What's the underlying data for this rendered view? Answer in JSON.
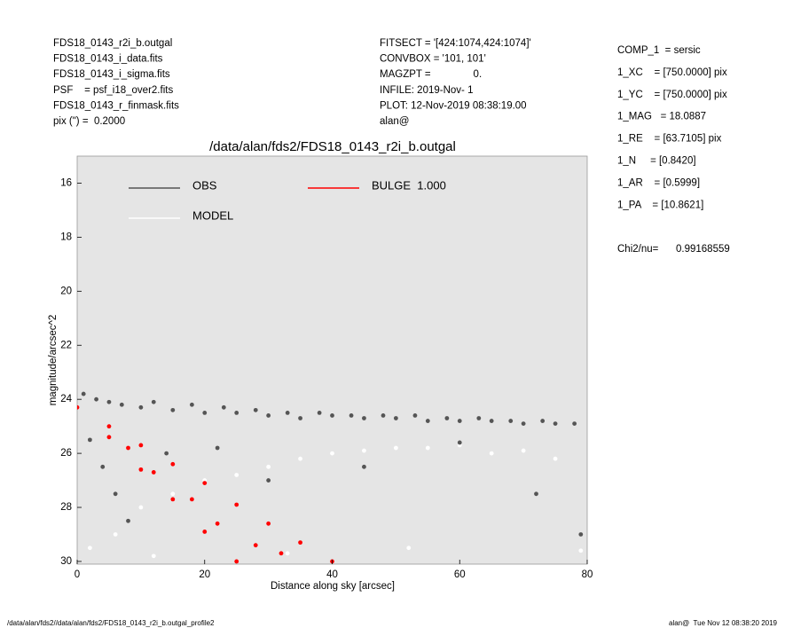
{
  "header": {
    "left": [
      "FDS18_0143_r2i_b.outgal",
      "FDS18_0143_i_data.fits",
      "FDS18_0143_i_sigma.fits",
      "PSF    = psf_i18_over2.fits",
      "FDS18_0143_r_finmask.fits",
      "pix (\") =  0.2000"
    ],
    "middle": [
      "FITSECT = '[424:1074,424:1074]'",
      "CONVBOX = '101, 101'",
      "MAGZPT =               0.",
      "INFILE: 2019-Nov- 1",
      "PLOT: 12-Nov-2019 08:38:19.00",
      "alan@"
    ],
    "right": [
      "COMP_1  = sersic",
      "1_XC    = [750.0000] pix",
      "1_YC    = [750.0000] pix",
      "1_MAG   = 18.0887",
      "1_RE    = [63.7105] pix",
      "1_N     = [0.8420]",
      "1_AR    = [0.5999]",
      "1_PA    = [10.8621]"
    ],
    "chi2_label": "Chi2/nu=",
    "chi2_value": "0.99168559"
  },
  "footer": {
    "left": "/data/alan/fds2//data/alan/fds2/FDS18_0143_r2i_b.outgal_profile2",
    "right": "alan@  Tue Nov 12 08:38:20 2019"
  },
  "chart_data": {
    "type": "scatter",
    "title": "/data/alan/fds2/FDS18_0143_r2i_b.outgal",
    "x_label": "Distance along sky [arcsec]",
    "y_label": "magnitude/arcsec^2",
    "xlim": [
      0,
      80
    ],
    "ylim": [
      30.1,
      15
    ],
    "xticks": [
      0,
      20,
      40,
      60,
      80
    ],
    "yticks": [
      16,
      18,
      20,
      22,
      24,
      26,
      28,
      30
    ],
    "background": "#e5e5e5",
    "series": [
      {
        "name": "OBS",
        "color": "#555555",
        "x": [
          1,
          3,
          5,
          7,
          10,
          12,
          15,
          18,
          20,
          23,
          25,
          28,
          30,
          33,
          35,
          38,
          40,
          43,
          45,
          48,
          50,
          53,
          55,
          58,
          60,
          63,
          65,
          68,
          70,
          73,
          75,
          78,
          2,
          4,
          6,
          8,
          14,
          22,
          30,
          45,
          60,
          72,
          79
        ],
        "values": [
          23.8,
          24.0,
          24.1,
          24.2,
          24.3,
          24.1,
          24.4,
          24.2,
          24.5,
          24.3,
          24.5,
          24.4,
          24.6,
          24.5,
          24.7,
          24.5,
          24.6,
          24.6,
          24.7,
          24.6,
          24.7,
          24.6,
          24.8,
          24.7,
          24.8,
          24.7,
          24.8,
          24.8,
          24.9,
          24.8,
          24.9,
          24.9,
          25.5,
          26.5,
          27.5,
          28.5,
          26.0,
          25.8,
          27.0,
          26.5,
          25.6,
          27.5,
          29.0
        ]
      },
      {
        "name": "MODEL",
        "color": "#ffffff",
        "x": [
          2,
          6,
          10,
          15,
          20,
          25,
          30,
          35,
          40,
          45,
          50,
          55,
          60,
          65,
          70,
          75,
          79,
          12,
          33,
          52
        ],
        "values": [
          29.5,
          29.0,
          28.0,
          27.5,
          27.0,
          26.8,
          26.5,
          26.2,
          26.0,
          25.9,
          25.8,
          25.8,
          25.7,
          26.0,
          25.9,
          26.2,
          29.6,
          29.8,
          29.7,
          29.5
        ]
      },
      {
        "name": "BULGE  1.000",
        "color": "#ff0000",
        "x": [
          0,
          5,
          10,
          15,
          20,
          25,
          30,
          35,
          40,
          5,
          10,
          15,
          20,
          25,
          8,
          12,
          18,
          22,
          28,
          32
        ],
        "values": [
          24.3,
          25.0,
          25.7,
          26.4,
          27.1,
          27.9,
          28.6,
          29.3,
          30.0,
          25.4,
          26.6,
          27.7,
          28.9,
          30.0,
          25.8,
          26.7,
          27.7,
          28.6,
          29.4,
          29.7
        ]
      }
    ]
  }
}
